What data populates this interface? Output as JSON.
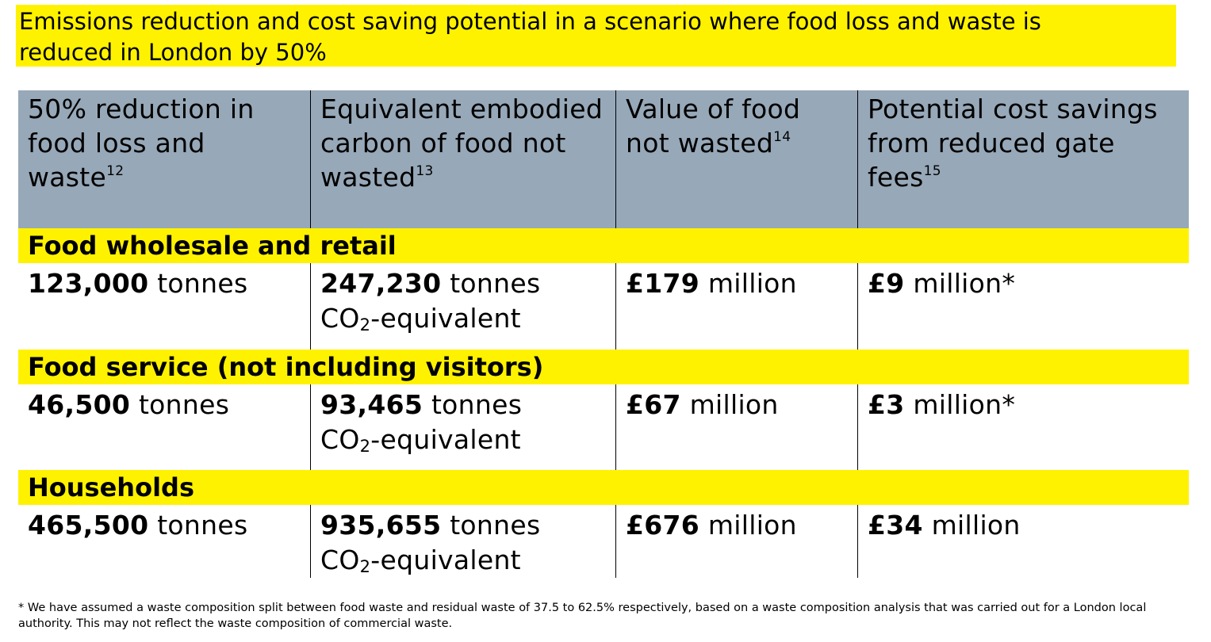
{
  "title": {
    "line1": "Emissions reduction and cost saving potential in a scenario where food loss and waste is",
    "line2": "reduced in London by 50%"
  },
  "header": [
    {
      "lines": [
        "50% reduction in",
        "food loss and",
        "waste"
      ],
      "ref": "12"
    },
    {
      "lines": [
        "Equivalent embodied",
        "carbon of food not",
        "wasted"
      ],
      "ref": "13"
    },
    {
      "lines": [
        "Value of food",
        "not wasted"
      ],
      "ref": "14"
    },
    {
      "lines": [
        "Potential cost savings",
        "from reduced gate",
        "fees"
      ],
      "ref": "15"
    }
  ],
  "sections": [
    {
      "label": "Food wholesale and retail",
      "reduction": {
        "value": "123,000",
        "unit": " tonnes"
      },
      "carbon": {
        "value": "247,230",
        "unit": " tonnes",
        "line2_a": "CO",
        "line2_sub": "2",
        "line2_b": "-equivalent"
      },
      "food_value": {
        "value": "£179",
        "unit": " million"
      },
      "savings": {
        "value": "£9",
        "unit": " million*"
      }
    },
    {
      "label": "Food service (not including visitors)",
      "reduction": {
        "value": "46,500",
        "unit": " tonnes"
      },
      "carbon": {
        "value": "93,465",
        "unit": " tonnes",
        "line2_a": "CO",
        "line2_sub": "2",
        "line2_b": "-equivalent"
      },
      "food_value": {
        "value": "£67",
        "unit": " million"
      },
      "savings": {
        "value": "£3",
        "unit": " million*"
      }
    },
    {
      "label": "Households",
      "reduction": {
        "value": "465,500",
        "unit": " tonnes"
      },
      "carbon": {
        "value": "935,655",
        "unit": " tonnes",
        "line2_a": "CO",
        "line2_sub": "2",
        "line2_b": "-equivalent"
      },
      "food_value": {
        "value": "£676",
        "unit": " million"
      },
      "savings": {
        "value": "£34",
        "unit": " million"
      }
    }
  ],
  "footnote": {
    "line1": "* We have assumed a waste composition split between food waste and residual waste of 37.5 to 62.5% respectively, based on a waste composition analysis that was carried out for a London local",
    "line2": "authority. This may not reflect the waste composition of commercial waste."
  },
  "colors": {
    "highlight": "#fff200",
    "header_bg": "#97a8b8"
  }
}
